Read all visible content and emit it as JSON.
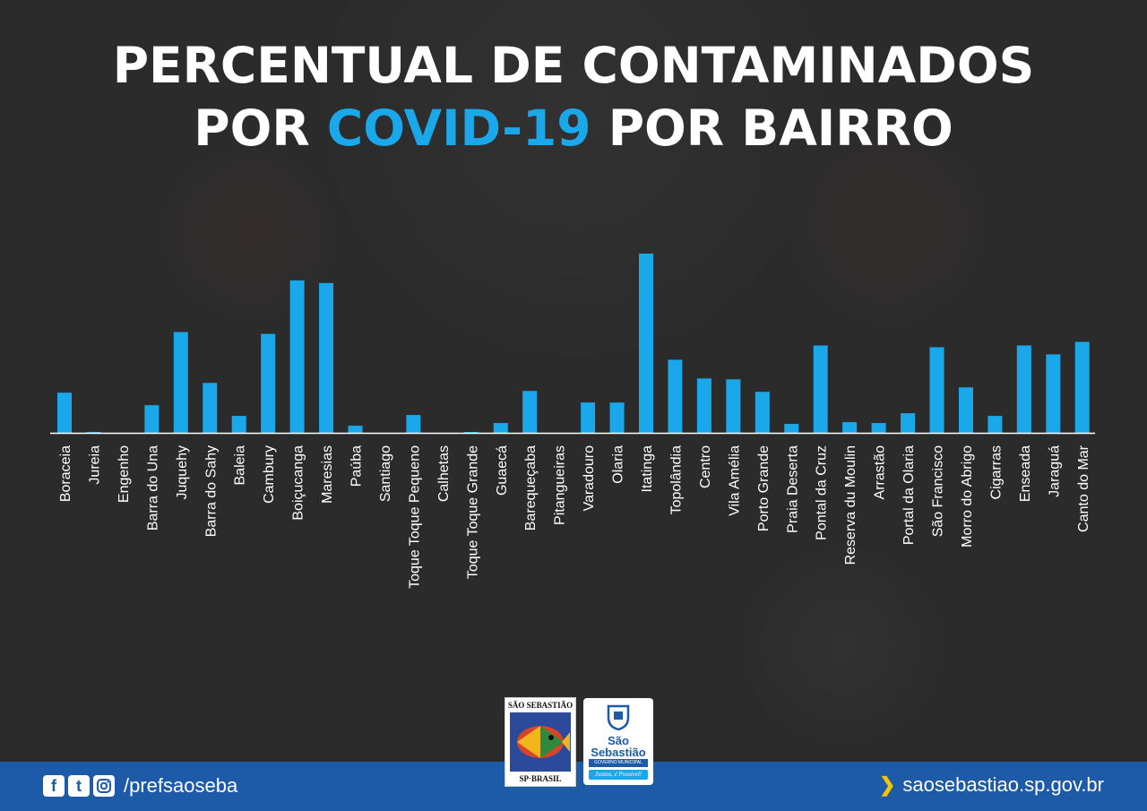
{
  "header": {
    "title_line1": "PERCENTUAL DE CONTAMINADOS",
    "title_line2_a": "POR ",
    "title_line2_accent": "COVID-19",
    "title_line2_b": " POR BAIRRO"
  },
  "colors": {
    "bar": "#1aa8ea",
    "accent": "#1aa8ea",
    "footer": "#1d5aa8",
    "axis": "#ffffff"
  },
  "chart_data": {
    "type": "bar",
    "title": "PERCENTUAL DE CONTAMINADOS POR COVID-19 POR BAIRRO",
    "xlabel": "",
    "ylabel": "",
    "grid": false,
    "categories": [
      "Boraceia",
      "Jureia",
      "Engenho",
      "Barra do Una",
      "Juquehy",
      "Barra do Sahy",
      "Baleia",
      "Cambury",
      "Boiçucanga",
      "Maresias",
      "Paúba",
      "Santiago",
      "Toque Toque Pequeno",
      "Calhetas",
      "Toque Toque Grande",
      "Guaecá",
      "Barequeçaba",
      "Pitangueiras",
      "Varadouro",
      "Olaria",
      "Itatinga",
      "Topolândia",
      "Centro",
      "Vila Amélia",
      "Porto Grande",
      "Praia Deserta",
      "Pontal da Cruz",
      "Reserva du Moulin",
      "Arrastão",
      "Portal da Olaria",
      "São Francisco",
      "Morro do Abrigo",
      "Cigarras",
      "Enseada",
      "Jaraguá",
      "Canto do Mar"
    ],
    "values": [
      45,
      1,
      0,
      31,
      113,
      56,
      19,
      111,
      171,
      168,
      8,
      0,
      20,
      0,
      1,
      11,
      47,
      0,
      34,
      34,
      201,
      82,
      61,
      60,
      46,
      10,
      98,
      12,
      11,
      22,
      96,
      51,
      19,
      98,
      88,
      102
    ]
  },
  "footer": {
    "social_icons": [
      "facebook-icon",
      "twitter-icon",
      "instagram-icon"
    ],
    "handle": "/prefsaoseba",
    "website": "saosebastiao.sp.gov.br"
  },
  "logos": {
    "crest_top": "SÃO SEBASTIÃO",
    "crest_bottom": "SP·BRASIL",
    "gov_name1": "São",
    "gov_name2": "Sebastião",
    "gov_sub": "GOVERNO MUNICIPAL",
    "gov_slogan": "Juntos, é Possível!"
  }
}
